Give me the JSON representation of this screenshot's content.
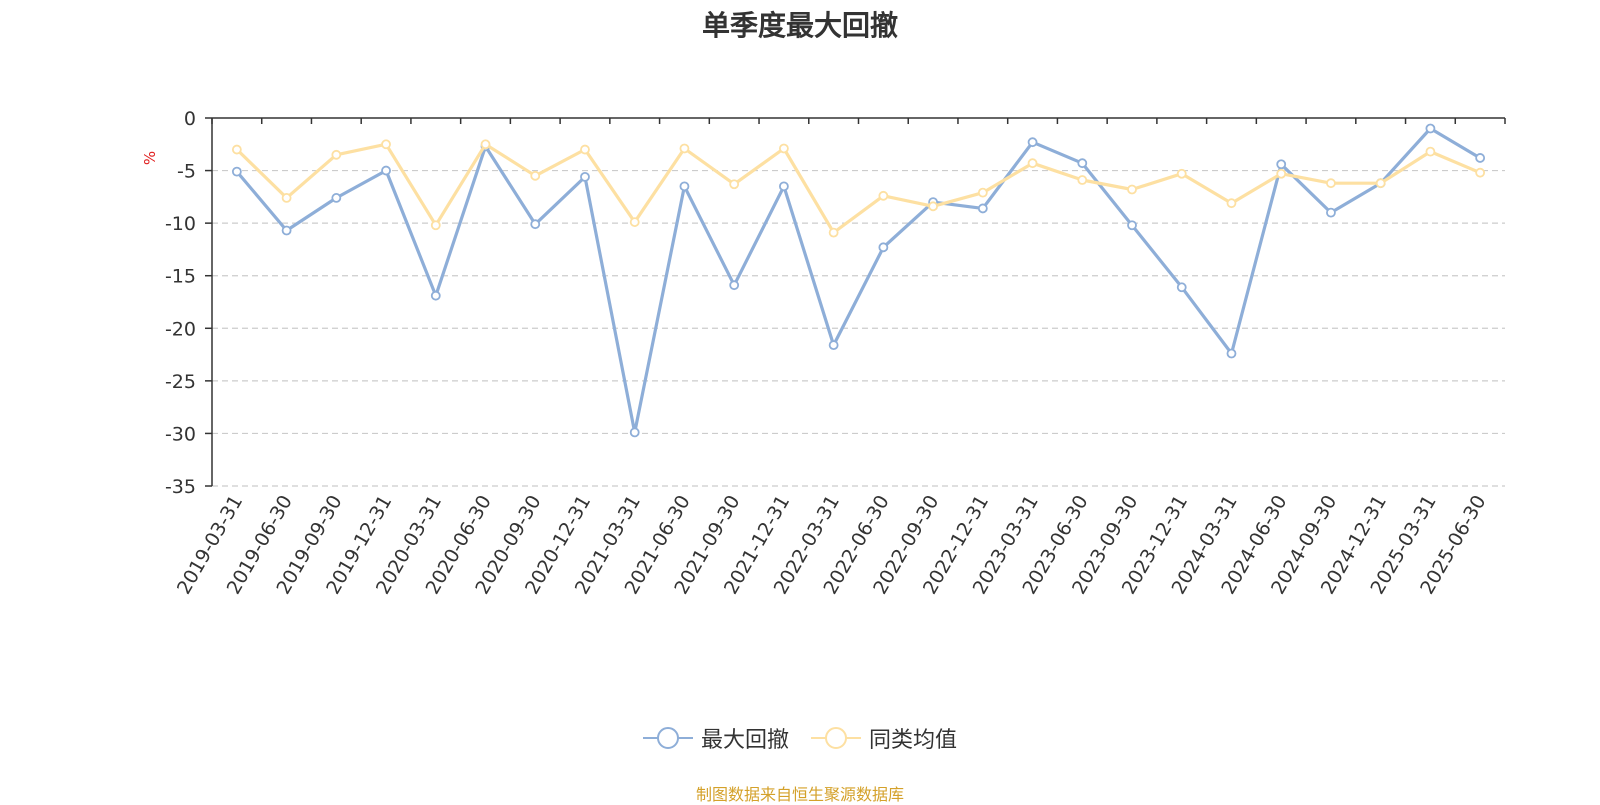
{
  "chart_data": {
    "type": "line",
    "title": "单季度最大回撤",
    "ylabel": "%",
    "ylim": [
      -35,
      0
    ],
    "yticks": [
      0,
      -5,
      -10,
      -15,
      -20,
      -25,
      -30,
      -35
    ],
    "grid": true,
    "legend_position": "bottom",
    "categories": [
      "2019-03-31",
      "2019-06-30",
      "2019-09-30",
      "2019-12-31",
      "2020-03-31",
      "2020-06-30",
      "2020-09-30",
      "2020-12-31",
      "2021-03-31",
      "2021-06-30",
      "2021-09-30",
      "2021-12-31",
      "2022-03-31",
      "2022-06-30",
      "2022-09-30",
      "2022-12-31",
      "2023-03-31",
      "2023-06-30",
      "2023-09-30",
      "2023-12-31",
      "2024-03-31",
      "2024-06-30",
      "2024-09-30",
      "2024-12-31",
      "2025-03-31",
      "2025-06-30"
    ],
    "series": [
      {
        "name": "最大回撤",
        "color": "#8eaed8",
        "values": [
          -5.1,
          -10.7,
          -7.6,
          -5.0,
          -16.9,
          -2.7,
          -10.1,
          -5.6,
          -29.9,
          -6.5,
          -15.9,
          -6.5,
          -21.6,
          -12.3,
          -8.0,
          -8.6,
          -2.3,
          -4.3,
          -10.2,
          -16.1,
          -22.4,
          -4.4,
          -9.0,
          -6.2,
          -1.0,
          -3.8
        ]
      },
      {
        "name": "同类均值",
        "color": "#fde0a2",
        "values": [
          -3.0,
          -7.6,
          -3.5,
          -2.5,
          -10.2,
          -2.5,
          -5.5,
          -3.0,
          -9.9,
          -2.9,
          -6.3,
          -2.9,
          -10.9,
          -7.4,
          -8.4,
          -7.1,
          -4.3,
          -5.9,
          -6.8,
          -5.3,
          -8.1,
          -5.3,
          -6.2,
          -6.2,
          -3.2,
          -5.2
        ]
      }
    ]
  },
  "source": {
    "text": "制图数据来自恒生聚源数据库",
    "color": "#d4a12a"
  },
  "colors": {
    "axis": "#333333",
    "grid": "#cccccc",
    "unit": "#e02020"
  }
}
